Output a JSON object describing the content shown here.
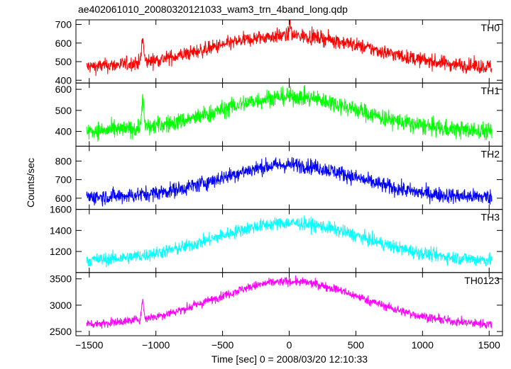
{
  "chart_data": {
    "type": "line",
    "title": "ae402061010_20080320121033_wam3_trn_4band_long.qdp",
    "xlabel": "Time [sec] 0 = 2008/03/20 12:10:33",
    "ylabel": "Counts/sec",
    "xlim": [
      -1600,
      1600
    ],
    "xticks": [
      -1500,
      -1000,
      -500,
      0,
      500,
      1000,
      1500
    ],
    "x_range": [
      -1520,
      1520
    ],
    "grid": false,
    "panels": [
      {
        "name": "TH0",
        "color": "#ff0000",
        "ylim": [
          385,
          725
        ],
        "yticks": [
          400,
          500,
          600,
          700
        ],
        "baseline": 465,
        "peak": 640,
        "peak_center": 0,
        "peak_width": 600,
        "noise": 28,
        "spike": {
          "x": -1100,
          "height": 130
        },
        "central_spike": {
          "x": 5,
          "height": 80
        }
      },
      {
        "name": "TH1",
        "color": "#00ff00",
        "ylim": [
          330,
          630
        ],
        "yticks": [
          400,
          500,
          600
        ],
        "baseline": 400,
        "peak": 565,
        "peak_center": 0,
        "peak_width": 520,
        "noise": 30,
        "spike": {
          "x": -1100,
          "height": 140
        }
      },
      {
        "name": "TH2",
        "color": "#0000ff",
        "ylim": [
          540,
          880
        ],
        "yticks": [
          600,
          700,
          800
        ],
        "baseline": 605,
        "peak": 780,
        "peak_center": 0,
        "peak_width": 500,
        "noise": 30
      },
      {
        "name": "TH3",
        "color": "#00ffff",
        "ylim": [
          1000,
          1600
        ],
        "yticks": [
          1200,
          1400,
          1600
        ],
        "baseline": 1110,
        "peak": 1470,
        "peak_center": 0,
        "peak_width": 560,
        "noise": 45
      },
      {
        "name": "TH0123",
        "color": "#ff00ff",
        "ylim": [
          2420,
          3620
        ],
        "yticks": [
          2500,
          3000,
          3500
        ],
        "baseline": 2620,
        "peak": 3450,
        "peak_center": 0,
        "peak_width": 560,
        "noise": 60,
        "spike": {
          "x": -1100,
          "height": 350
        }
      }
    ]
  }
}
